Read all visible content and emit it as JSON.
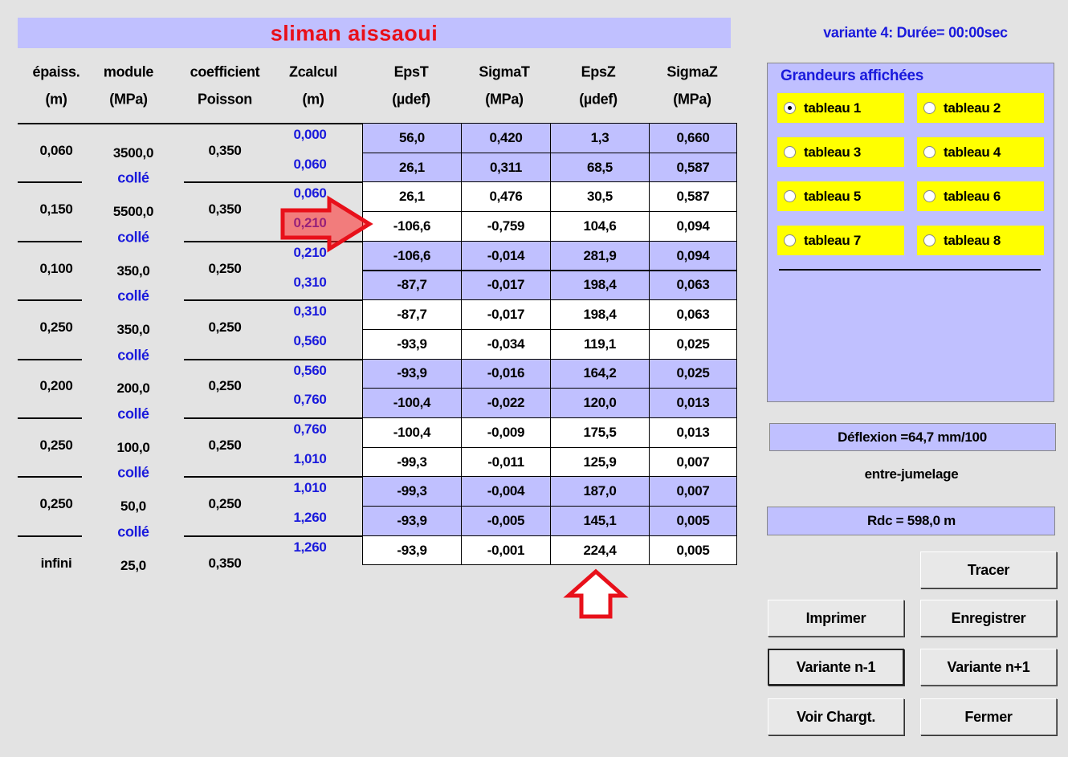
{
  "title": "sliman aissaoui",
  "columns": [
    {
      "top": "épaiss.",
      "bottom": "(m)"
    },
    {
      "top": "module",
      "bottom": "(MPa)"
    },
    {
      "top": "coefficient",
      "bottom": "Poisson"
    },
    {
      "top": "Zcalcul",
      "bottom": "(m)"
    },
    {
      "top": "EpsT",
      "bottom": "(µdef)"
    },
    {
      "top": "SigmaT",
      "bottom": "(MPa)"
    },
    {
      "top": "EpsZ",
      "bottom": "(µdef)"
    },
    {
      "top": "SigmaZ",
      "bottom": "(MPa)"
    }
  ],
  "layers": [
    {
      "thickness": "0,060",
      "module": "3500,0",
      "poisson": "0,350",
      "interface": "collé"
    },
    {
      "thickness": "0,150",
      "module": "5500,0",
      "poisson": "0,350",
      "interface": "collé"
    },
    {
      "thickness": "0,100",
      "module": "350,0",
      "poisson": "0,250",
      "interface": "collé"
    },
    {
      "thickness": "0,250",
      "module": "350,0",
      "poisson": "0,250",
      "interface": "collé"
    },
    {
      "thickness": "0,200",
      "module": "200,0",
      "poisson": "0,250",
      "interface": "collé"
    },
    {
      "thickness": "0,250",
      "module": "100,0",
      "poisson": "0,250",
      "interface": "collé"
    },
    {
      "thickness": "0,250",
      "module": "50,0",
      "poisson": "0,250",
      "interface": "collé"
    },
    {
      "thickness": "infini",
      "module": "25,0",
      "poisson": "0,350"
    }
  ],
  "zcalcul": [
    "0,000",
    "0,060",
    "0,060",
    "0,210",
    "0,210",
    "0,310",
    "0,310",
    "0,560",
    "0,560",
    "0,760",
    "0,760",
    "1,010",
    "1,010",
    "1,260",
    "1,260"
  ],
  "results": [
    [
      "56,0",
      "0,420",
      "1,3",
      "0,660"
    ],
    [
      "26,1",
      "0,311",
      "68,5",
      "0,587"
    ],
    [
      "26,1",
      "0,476",
      "30,5",
      "0,587"
    ],
    [
      "-106,6",
      "-0,759",
      "104,6",
      "0,094"
    ],
    [
      "-106,6",
      "-0,014",
      "281,9",
      "0,094"
    ],
    [
      "-87,7",
      "-0,017",
      "198,4",
      "0,063"
    ],
    [
      "-87,7",
      "-0,017",
      "198,4",
      "0,063"
    ],
    [
      "-93,9",
      "-0,034",
      "119,1",
      "0,025"
    ],
    [
      "-93,9",
      "-0,016",
      "164,2",
      "0,025"
    ],
    [
      "-100,4",
      "-0,022",
      "120,0",
      "0,013"
    ],
    [
      "-100,4",
      "-0,009",
      "175,5",
      "0,013"
    ],
    [
      "-99,3",
      "-0,011",
      "125,9",
      "0,007"
    ],
    [
      "-99,3",
      "-0,004",
      "187,0",
      "0,007"
    ],
    [
      "-93,9",
      "-0,005",
      "145,1",
      "0,005"
    ],
    [
      "-93,9",
      "-0,001",
      "224,4",
      "0,005"
    ]
  ],
  "variante": "variante 4:  Durée= 00:00sec",
  "display_group": {
    "title": "Grandeurs affichées",
    "options": [
      "tableau 1",
      "tableau 2",
      "tableau 3",
      "tableau 4",
      "tableau 5",
      "tableau 6",
      "tableau 7",
      "tableau 8"
    ]
  },
  "deflexion": "Déflexion =64,7 mm/100",
  "entre_jumelage": "entre-jumelage",
  "rdc": "Rdc = 598,0 m",
  "buttons": [
    "Tracer",
    "Imprimer",
    "Enregistrer",
    "Variante n-1",
    "Variante n+1",
    "Voir Chargt.",
    "Fermer"
  ]
}
